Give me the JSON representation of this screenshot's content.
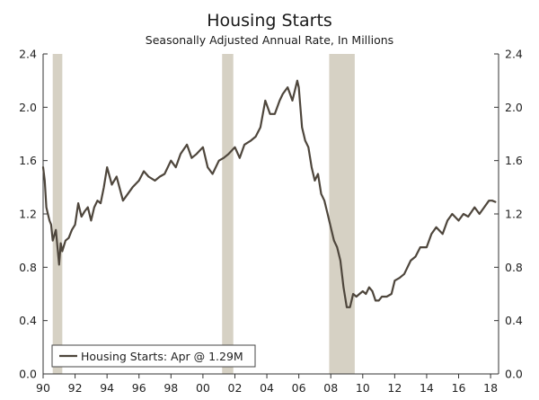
{
  "chart_data": {
    "type": "line",
    "title": "Housing Starts",
    "subtitle": "Seasonally Adjusted Annual Rate, In Millions",
    "xlim": [
      1990,
      2018.5
    ],
    "ylim": [
      0,
      2.4
    ],
    "yticks": [
      0.0,
      0.4,
      0.8,
      1.2,
      1.6,
      2.0,
      2.4
    ],
    "ytick_labels": [
      "0.0",
      "0.4",
      "0.8",
      "1.2",
      "1.6",
      "2.0",
      "2.4"
    ],
    "xticks": [
      1990,
      1992,
      1994,
      1996,
      1998,
      2000,
      2002,
      2004,
      2006,
      2008,
      2010,
      2012,
      2014,
      2016,
      2018
    ],
    "xtick_labels": [
      "90",
      "92",
      "94",
      "96",
      "98",
      "00",
      "02",
      "04",
      "06",
      "08",
      "10",
      "12",
      "14",
      "16",
      "18"
    ],
    "grid": false,
    "dual_y_axis": true,
    "legend_position": "bottom-left",
    "colors": {
      "line": "#4e463c",
      "recession": "#d6d1c4",
      "axis": "#333333"
    },
    "recessions": [
      {
        "start": 1990.6,
        "end": 1991.2
      },
      {
        "start": 2001.2,
        "end": 2001.9
      },
      {
        "start": 2007.9,
        "end": 2009.5
      }
    ],
    "series": [
      {
        "name": "Housing Starts: Apr @ 1.29M",
        "x": [
          1990.0,
          1990.1,
          1990.2,
          1990.3,
          1990.4,
          1990.5,
          1990.6,
          1990.8,
          1991.0,
          1991.1,
          1991.2,
          1991.4,
          1991.6,
          1991.8,
          1992.0,
          1992.2,
          1992.4,
          1992.6,
          1992.8,
          1993.0,
          1993.2,
          1993.4,
          1993.6,
          1993.8,
          1994.0,
          1994.3,
          1994.6,
          1995.0,
          1995.3,
          1995.6,
          1996.0,
          1996.3,
          1996.6,
          1997.0,
          1997.3,
          1997.6,
          1998.0,
          1998.3,
          1998.6,
          1999.0,
          1999.3,
          1999.6,
          2000.0,
          2000.3,
          2000.6,
          2001.0,
          2001.3,
          2001.6,
          2002.0,
          2002.3,
          2002.6,
          2003.0,
          2003.3,
          2003.6,
          2003.9,
          2004.2,
          2004.5,
          2004.8,
          2005.0,
          2005.3,
          2005.6,
          2005.9,
          2006.0,
          2006.2,
          2006.4,
          2006.6,
          2006.8,
          2007.0,
          2007.2,
          2007.4,
          2007.6,
          2007.8,
          2008.0,
          2008.2,
          2008.4,
          2008.6,
          2008.8,
          2009.0,
          2009.2,
          2009.4,
          2009.6,
          2009.8,
          2010.0,
          2010.2,
          2010.4,
          2010.6,
          2010.8,
          2011.0,
          2011.2,
          2011.5,
          2011.8,
          2012.0,
          2012.3,
          2012.6,
          2013.0,
          2013.3,
          2013.6,
          2014.0,
          2014.3,
          2014.6,
          2015.0,
          2015.3,
          2015.6,
          2016.0,
          2016.3,
          2016.6,
          2017.0,
          2017.3,
          2017.6,
          2017.9,
          2018.1,
          2018.3
        ],
        "values": [
          1.55,
          1.45,
          1.25,
          1.2,
          1.15,
          1.12,
          1.0,
          1.08,
          0.82,
          0.98,
          0.92,
          1.0,
          1.02,
          1.08,
          1.12,
          1.28,
          1.18,
          1.22,
          1.25,
          1.15,
          1.25,
          1.3,
          1.28,
          1.4,
          1.55,
          1.42,
          1.48,
          1.3,
          1.35,
          1.4,
          1.45,
          1.52,
          1.48,
          1.45,
          1.48,
          1.5,
          1.6,
          1.55,
          1.65,
          1.72,
          1.62,
          1.65,
          1.7,
          1.55,
          1.5,
          1.6,
          1.62,
          1.65,
          1.7,
          1.62,
          1.72,
          1.75,
          1.78,
          1.85,
          2.05,
          1.95,
          1.95,
          2.05,
          2.1,
          2.15,
          2.05,
          2.2,
          2.15,
          1.85,
          1.75,
          1.7,
          1.55,
          1.45,
          1.5,
          1.35,
          1.3,
          1.2,
          1.1,
          1.0,
          0.95,
          0.85,
          0.65,
          0.5,
          0.5,
          0.6,
          0.58,
          0.6,
          0.62,
          0.6,
          0.65,
          0.62,
          0.55,
          0.55,
          0.58,
          0.58,
          0.6,
          0.7,
          0.72,
          0.75,
          0.85,
          0.88,
          0.95,
          0.95,
          1.05,
          1.1,
          1.05,
          1.15,
          1.2,
          1.15,
          1.2,
          1.18,
          1.25,
          1.2,
          1.25,
          1.3,
          1.3,
          1.29
        ]
      }
    ]
  }
}
